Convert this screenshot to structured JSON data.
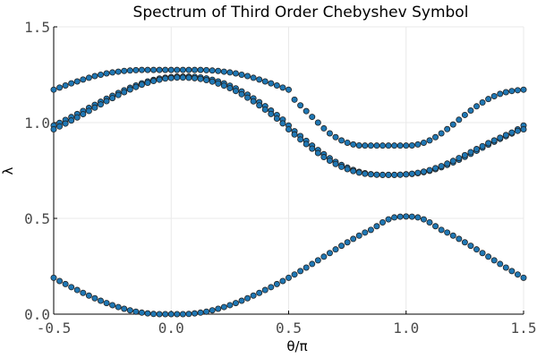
{
  "chart_data": {
    "type": "scatter",
    "title": "Spectrum of Third Order Chebyshev Symbol",
    "xlabel": "θ/π",
    "ylabel": "λ",
    "xlim": [
      -0.5,
      1.5
    ],
    "ylim": [
      0.0,
      1.5
    ],
    "xticks": [
      -0.5,
      0.0,
      0.5,
      1.0,
      1.5
    ],
    "xtick_labels": [
      "-0.5",
      "0.0",
      "0.5",
      "1.0",
      "1.5"
    ],
    "yticks": [
      0.0,
      0.5,
      1.0,
      1.5
    ],
    "ytick_labels": [
      "0.0",
      "0.5",
      "1.0",
      "1.5"
    ],
    "grid": true,
    "legend": "none",
    "marker_color": "#1f77b4",
    "marker_edge_color": "#222222",
    "series": [
      {
        "x": [
          -0.5,
          -0.475,
          -0.45,
          -0.425,
          -0.4,
          -0.375,
          -0.35,
          -0.325,
          -0.3,
          -0.275,
          -0.25,
          -0.225,
          -0.2,
          -0.175,
          -0.15,
          -0.125,
          -0.1,
          -0.075,
          -0.05,
          -0.025,
          0.0,
          0.025,
          0.05,
          0.075,
          0.1,
          0.125,
          0.15,
          0.175,
          0.2,
          0.225,
          0.25,
          0.275,
          0.3,
          0.325,
          0.35,
          0.375,
          0.4,
          0.425,
          0.45,
          0.475,
          0.5,
          0.525,
          0.55,
          0.575,
          0.6,
          0.625,
          0.65,
          0.675,
          0.7,
          0.725,
          0.75,
          0.775,
          0.8,
          0.825,
          0.85,
          0.875,
          0.9,
          0.925,
          0.95,
          0.975,
          1.0,
          1.025,
          1.05,
          1.075,
          1.1,
          1.125,
          1.15,
          1.175,
          1.2,
          1.225,
          1.25,
          1.275,
          1.3,
          1.325,
          1.35,
          1.375,
          1.4,
          1.425,
          1.45,
          1.475,
          1.5
        ],
        "y": [
          1.172,
          1.183,
          1.194,
          1.205,
          1.215,
          1.225,
          1.234,
          1.243,
          1.25,
          1.257,
          1.262,
          1.266,
          1.27,
          1.272,
          1.274,
          1.275,
          1.275,
          1.275,
          1.275,
          1.275,
          1.275,
          1.275,
          1.275,
          1.275,
          1.275,
          1.275,
          1.274,
          1.272,
          1.27,
          1.266,
          1.262,
          1.257,
          1.25,
          1.243,
          1.234,
          1.225,
          1.215,
          1.205,
          1.194,
          1.183,
          1.172,
          1.12,
          1.09,
          1.06,
          1.03,
          1.0,
          0.97,
          0.944,
          0.924,
          0.907,
          0.895,
          0.886,
          0.881,
          0.88,
          0.88,
          0.88,
          0.88,
          0.88,
          0.88,
          0.88,
          0.88,
          0.881,
          0.886,
          0.895,
          0.907,
          0.924,
          0.944,
          0.966,
          0.99,
          1.015,
          1.04,
          1.063,
          1.085,
          1.105,
          1.123,
          1.138,
          1.15,
          1.159,
          1.165,
          1.169,
          1.172
        ]
      },
      {
        "x": [
          -0.5,
          -0.475,
          -0.45,
          -0.425,
          -0.4,
          -0.375,
          -0.35,
          -0.325,
          -0.3,
          -0.275,
          -0.25,
          -0.225,
          -0.2,
          -0.175,
          -0.15,
          -0.125,
          -0.1,
          -0.075,
          -0.05,
          -0.025,
          0.0,
          0.025,
          0.05,
          0.075,
          0.1,
          0.125,
          0.15,
          0.175,
          0.2,
          0.225,
          0.25,
          0.275,
          0.3,
          0.325,
          0.35,
          0.375,
          0.4,
          0.425,
          0.45,
          0.475,
          0.5,
          0.525,
          0.55,
          0.575,
          0.6,
          0.625,
          0.65,
          0.675,
          0.7,
          0.725,
          0.75,
          0.775,
          0.8,
          0.825,
          0.85,
          0.875,
          0.9,
          0.925,
          0.95,
          0.975,
          1.0,
          1.025,
          1.05,
          1.075,
          1.1,
          1.125,
          1.15,
          1.175,
          1.2,
          1.225,
          1.25,
          1.275,
          1.3,
          1.325,
          1.35,
          1.375,
          1.4,
          1.425,
          1.45,
          1.475,
          1.5
        ],
        "y": [
          0.985,
          0.999,
          1.014,
          1.029,
          1.045,
          1.061,
          1.077,
          1.093,
          1.109,
          1.125,
          1.14,
          1.155,
          1.169,
          1.182,
          1.194,
          1.205,
          1.215,
          1.223,
          1.23,
          1.235,
          1.238,
          1.24,
          1.24,
          1.24,
          1.239,
          1.236,
          1.231,
          1.224,
          1.215,
          1.205,
          1.193,
          1.179,
          1.163,
          1.146,
          1.127,
          1.107,
          1.086,
          1.063,
          1.04,
          1.016,
          0.985,
          0.955,
          0.93,
          0.905,
          0.88,
          0.857,
          0.835,
          0.814,
          0.795,
          0.779,
          0.765,
          0.753,
          0.743,
          0.736,
          0.731,
          0.728,
          0.727,
          0.727,
          0.727,
          0.728,
          0.73,
          0.732,
          0.736,
          0.741,
          0.748,
          0.757,
          0.767,
          0.779,
          0.792,
          0.806,
          0.821,
          0.837,
          0.853,
          0.869,
          0.885,
          0.9,
          0.915,
          0.929,
          0.943,
          0.965,
          0.985
        ]
      },
      {
        "x": [
          -0.5,
          -0.475,
          -0.45,
          -0.425,
          -0.4,
          -0.375,
          -0.35,
          -0.325,
          -0.3,
          -0.275,
          -0.25,
          -0.225,
          -0.2,
          -0.175,
          -0.15,
          -0.125,
          -0.1,
          -0.075,
          -0.05,
          -0.025,
          0.0,
          0.025,
          0.05,
          0.075,
          0.1,
          0.125,
          0.15,
          0.175,
          0.2,
          0.225,
          0.25,
          0.275,
          0.3,
          0.325,
          0.35,
          0.375,
          0.4,
          0.425,
          0.45,
          0.475,
          0.5,
          0.525,
          0.55,
          0.575,
          0.6,
          0.625,
          0.65,
          0.675,
          0.7,
          0.725,
          0.75,
          0.775,
          0.8,
          0.825,
          0.85,
          0.875,
          0.9,
          0.925,
          0.95,
          0.975,
          1.0,
          1.025,
          1.05,
          1.075,
          1.1,
          1.125,
          1.15,
          1.175,
          1.2,
          1.225,
          1.25,
          1.275,
          1.3,
          1.325,
          1.35,
          1.375,
          1.4,
          1.425,
          1.45,
          1.475,
          1.5
        ],
        "y": [
          0.965,
          0.98,
          0.995,
          1.011,
          1.027,
          1.044,
          1.061,
          1.078,
          1.095,
          1.112,
          1.128,
          1.144,
          1.159,
          1.173,
          1.186,
          1.198,
          1.208,
          1.217,
          1.224,
          1.23,
          1.233,
          1.235,
          1.235,
          1.234,
          1.232,
          1.228,
          1.222,
          1.214,
          1.204,
          1.193,
          1.18,
          1.165,
          1.148,
          1.13,
          1.111,
          1.09,
          1.068,
          1.045,
          1.021,
          0.996,
          0.965,
          0.938,
          0.912,
          0.888,
          0.864,
          0.841,
          0.82,
          0.801,
          0.784,
          0.769,
          0.757,
          0.747,
          0.739,
          0.733,
          0.73,
          0.728,
          0.727,
          0.727,
          0.727,
          0.728,
          0.73,
          0.733,
          0.738,
          0.744,
          0.752,
          0.762,
          0.773,
          0.786,
          0.8,
          0.815,
          0.83,
          0.846,
          0.862,
          0.877,
          0.893,
          0.907,
          0.921,
          0.935,
          0.948,
          0.957,
          0.965
        ]
      },
      {
        "x": [
          -0.5,
          -0.475,
          -0.45,
          -0.425,
          -0.4,
          -0.375,
          -0.35,
          -0.325,
          -0.3,
          -0.275,
          -0.25,
          -0.225,
          -0.2,
          -0.175,
          -0.15,
          -0.125,
          -0.1,
          -0.075,
          -0.05,
          -0.025,
          0.0,
          0.025,
          0.05,
          0.075,
          0.1,
          0.125,
          0.15,
          0.175,
          0.2,
          0.225,
          0.25,
          0.275,
          0.3,
          0.325,
          0.35,
          0.375,
          0.4,
          0.425,
          0.45,
          0.475,
          0.5,
          0.525,
          0.55,
          0.575,
          0.6,
          0.625,
          0.65,
          0.675,
          0.7,
          0.725,
          0.75,
          0.775,
          0.8,
          0.825,
          0.85,
          0.875,
          0.9,
          0.925,
          0.95,
          0.975,
          1.0,
          1.025,
          1.05,
          1.075,
          1.1,
          1.125,
          1.15,
          1.175,
          1.2,
          1.225,
          1.25,
          1.275,
          1.3,
          1.325,
          1.35,
          1.375,
          1.4,
          1.425,
          1.45,
          1.475,
          1.5
        ],
        "y": [
          0.19,
          0.173,
          0.157,
          0.141,
          0.126,
          0.111,
          0.097,
          0.083,
          0.07,
          0.058,
          0.047,
          0.037,
          0.028,
          0.02,
          0.013,
          0.008,
          0.004,
          0.001,
          0.0,
          0.0,
          0.0,
          0.0,
          0.0,
          0.001,
          0.004,
          0.008,
          0.013,
          0.02,
          0.028,
          0.037,
          0.047,
          0.058,
          0.07,
          0.083,
          0.097,
          0.111,
          0.126,
          0.141,
          0.157,
          0.173,
          0.19,
          0.207,
          0.225,
          0.243,
          0.262,
          0.281,
          0.3,
          0.319,
          0.338,
          0.357,
          0.375,
          0.393,
          0.41,
          0.426,
          0.44,
          0.459,
          0.479,
          0.495,
          0.505,
          0.509,
          0.51,
          0.509,
          0.505,
          0.495,
          0.479,
          0.459,
          0.44,
          0.426,
          0.41,
          0.393,
          0.375,
          0.357,
          0.338,
          0.319,
          0.3,
          0.281,
          0.262,
          0.243,
          0.225,
          0.207,
          0.19
        ]
      }
    ]
  }
}
